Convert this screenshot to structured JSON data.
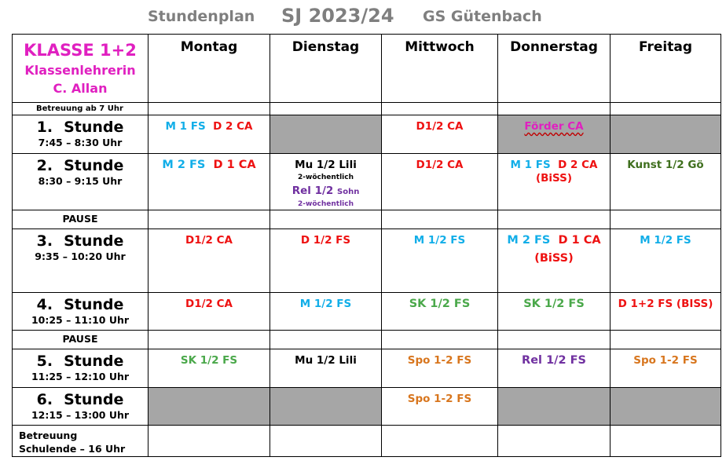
{
  "header": {
    "left": "Stundenplan",
    "middle": "SJ 2023/24",
    "right": "GS Gütenbach"
  },
  "class_info": {
    "class": "KLASSE 1+2",
    "role": "Klassenlehrerin",
    "teacher": "C. Allan"
  },
  "days": [
    "Montag",
    "Dienstag",
    "Mittwoch",
    "Donnerstag",
    "Freitag"
  ],
  "betreuung_morning": "Betreuung ab 7 Uhr",
  "pause_label": "PAUSE",
  "periods": [
    {
      "num": "1.",
      "label": "Stunde",
      "time": "7:45 – 8:30 Uhr"
    },
    {
      "num": "2.",
      "label": "Stunde",
      "time": "8:30 – 9:15 Uhr"
    },
    {
      "num": "3.",
      "label": "Stunde",
      "time": "9:35 – 10:20 Uhr"
    },
    {
      "num": "4.",
      "label": "Stunde",
      "time": "10:25 – 11:10 Uhr"
    },
    {
      "num": "5.",
      "label": "Stunde",
      "time": "11:25 – 12:10 Uhr"
    },
    {
      "num": "6.",
      "label": "Stunde",
      "time": "12:15 – 13:00 Uhr"
    }
  ],
  "betreuung_end": {
    "line1": "Betreuung",
    "line2": "Schulende – 16 Uhr"
  },
  "colors": {
    "class_header": "#e020c0",
    "mathe": "#12aee8",
    "deutsch": "#ee1111",
    "sachkunde": "#4aa84a",
    "sport": "#d8761e",
    "religion": "#7030a0",
    "kunst": "#3f6f1e",
    "blocked_cell": "#a6a6a6",
    "title_grey": "#7f7f7f"
  },
  "schedule": {
    "p1": {
      "mon_a": "M 1 FS",
      "mon_b": "D 2 CA",
      "wed": "D1/2 CA",
      "thu": "Förder CA"
    },
    "p2": {
      "mon_a": "M 2 FS",
      "mon_b": "D 1 CA",
      "tue_a": "Mu 1/2 Lili",
      "tue_a_note": "2-wöchentlich",
      "tue_b": "Rel 1/2",
      "tue_b_small": "Sohn",
      "tue_b_note": "2-wöchentlich",
      "wed": "D1/2 CA",
      "thu_a": "M 1 FS",
      "thu_b": "D 2 CA",
      "thu_c": "(BiSS)",
      "fri": "Kunst 1/2 Gö"
    },
    "p3": {
      "mon": "D1/2 CA",
      "tue": "D 1/2 FS",
      "wed": "M 1/2 FS",
      "thu_a": "M 2 FS",
      "thu_b": "D 1 CA",
      "thu_c": "(BiSS)",
      "fri": "M 1/2 FS"
    },
    "p4": {
      "mon": "D1/2 CA",
      "tue": "M 1/2 FS",
      "wed": "SK 1/2 FS",
      "thu": "SK 1/2 FS",
      "fri": "D 1+2 FS (BISS)"
    },
    "p5": {
      "mon": "SK 1/2 FS",
      "tue": "Mu 1/2 Lili",
      "wed": "Spo 1-2 FS",
      "thu": "Rel 1/2 FS",
      "fri": "Spo 1-2 FS"
    },
    "p6": {
      "wed": "Spo 1-2 FS"
    }
  }
}
